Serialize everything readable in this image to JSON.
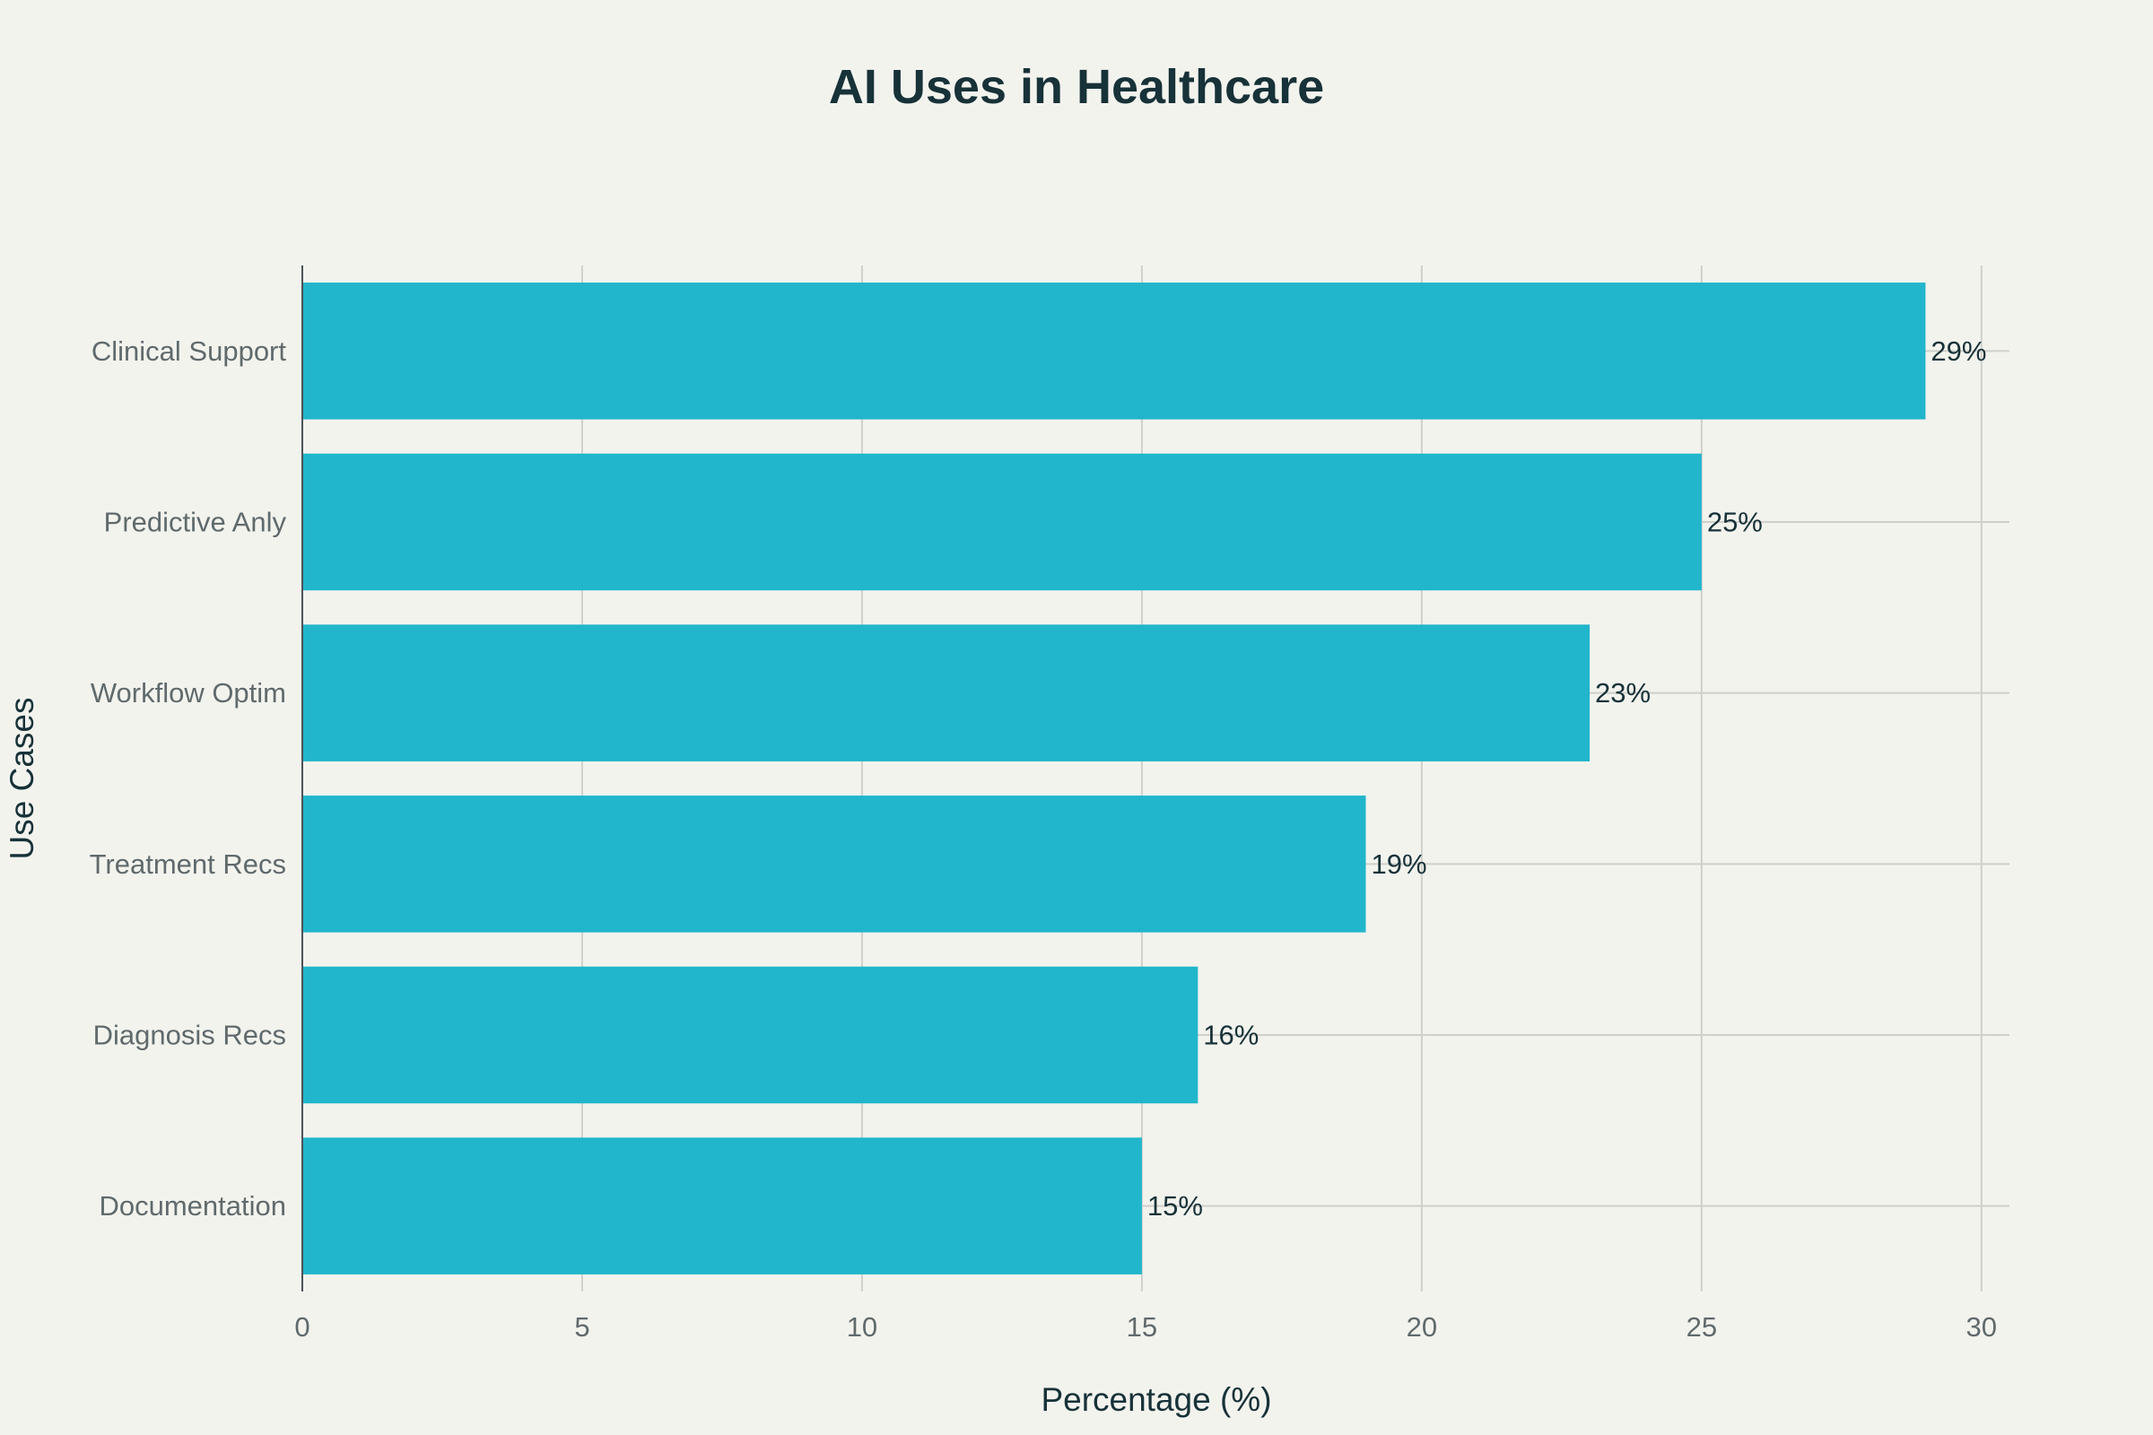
{
  "chart_data": {
    "type": "bar",
    "orientation": "horizontal",
    "title": "AI Uses in Healthcare",
    "xlabel": "Percentage (%)",
    "ylabel": "Use Cases",
    "categories": [
      "Clinical Support",
      "Predictive Anly",
      "Workflow Optim",
      "Treatment Recs",
      "Diagnosis Recs",
      "Documentation"
    ],
    "values": [
      29,
      25,
      23,
      19,
      16,
      15
    ],
    "data_labels": [
      "29%",
      "25%",
      "23%",
      "19%",
      "16%",
      "15%"
    ],
    "xlim": [
      0,
      30.5
    ],
    "xticks": [
      0,
      5,
      10,
      15,
      20,
      25,
      30
    ],
    "xtick_labels": [
      "0",
      "5",
      "10",
      "15",
      "20",
      "25",
      "30"
    ],
    "grid": true,
    "legend": "none",
    "colors": {
      "bar": "#21b6cb",
      "background": "#f3f3ee",
      "grid": "#cfd0cb",
      "axis": "#4d5357",
      "title": "#173238",
      "tick": "#606a6c"
    }
  }
}
